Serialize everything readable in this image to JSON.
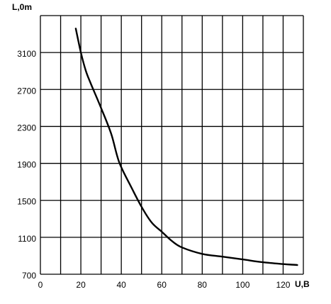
{
  "chart_data": {
    "type": "line",
    "title": "",
    "xlabel": "U,B",
    "ylabel": "L,0m",
    "xlim": [
      0,
      130
    ],
    "ylim": [
      700,
      3500
    ],
    "grid": true,
    "legend": "none",
    "x_ticks": [
      0,
      20,
      40,
      60,
      80,
      100,
      120
    ],
    "y_ticks": [
      700,
      1100,
      1500,
      1900,
      2300,
      2700,
      3100
    ],
    "series": [
      {
        "x": [
          17.5,
          20,
          22.5,
          25,
          30,
          35,
          39,
          45,
          50,
          55,
          60,
          65,
          70,
          80,
          90,
          100,
          110,
          120,
          127
        ],
        "y": [
          3360,
          3100,
          2900,
          2760,
          2500,
          2220,
          1910,
          1640,
          1430,
          1260,
          1160,
          1060,
          990,
          920,
          890,
          860,
          830,
          810,
          800
        ]
      }
    ]
  }
}
